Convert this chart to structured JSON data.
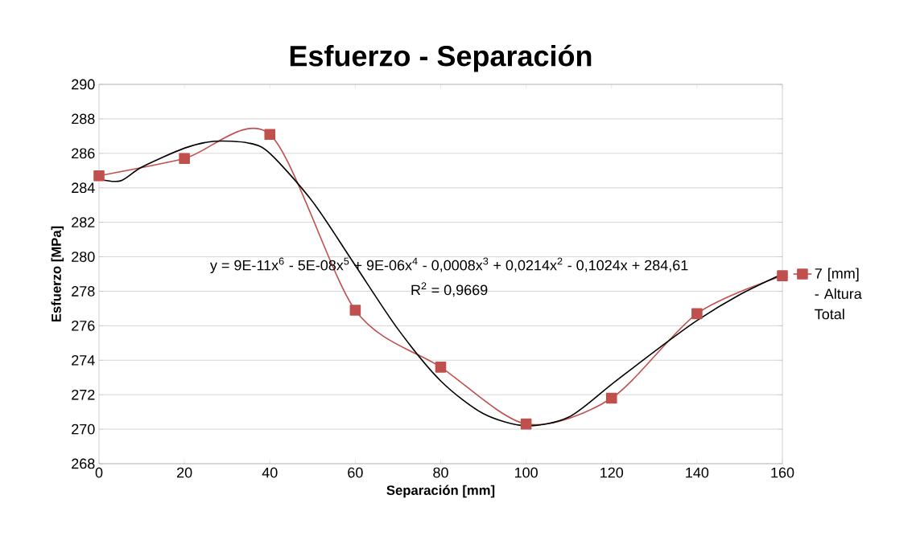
{
  "chart_data": {
    "type": "line",
    "title": "Esfuerzo - Separación",
    "xlabel": "Separación [mm]",
    "ylabel": "Esfuerzo [MPa]",
    "x": [
      0,
      20,
      40,
      60,
      80,
      100,
      120,
      140,
      160
    ],
    "series": [
      {
        "name": "7 [mm] - Altura Total",
        "color": "#c0504d",
        "marker": "square",
        "values": [
          284.7,
          285.7,
          287.1,
          276.9,
          273.6,
          270.3,
          271.8,
          276.7,
          278.9
        ]
      },
      {
        "type": "line",
        "color": "#000000",
        "marker": "none",
        "x": [
          0,
          5,
          10,
          20,
          27,
          35,
          40,
          50,
          60,
          70,
          80,
          90,
          100,
          110,
          120,
          130,
          140,
          150,
          160
        ],
        "values": [
          284.5,
          284.4,
          285.2,
          286.3,
          286.7,
          286.6,
          286.0,
          283.2,
          279.5,
          275.8,
          272.8,
          270.9,
          270.2,
          270.7,
          272.6,
          274.5,
          276.3,
          277.8,
          279.0
        ]
      }
    ],
    "xlim": [
      0,
      160
    ],
    "ylim": [
      268,
      290
    ],
    "xticks": [
      0,
      20,
      40,
      60,
      80,
      100,
      120,
      140,
      160
    ],
    "yticks": [
      268,
      270,
      272,
      274,
      276,
      278,
      280,
      282,
      284,
      286,
      288,
      290
    ],
    "grid": "y",
    "legend": "right",
    "annotations": [
      "y = 9E-11x$^{6}$ - 5E-08x$^{5}$ + 9E-06x$^{4}$ - 0,0008x$^{3}$ + 0,0214x$^{2}$ - 0,1024x + 284,61",
      "R$^{2}$ = 0,9669"
    ]
  }
}
